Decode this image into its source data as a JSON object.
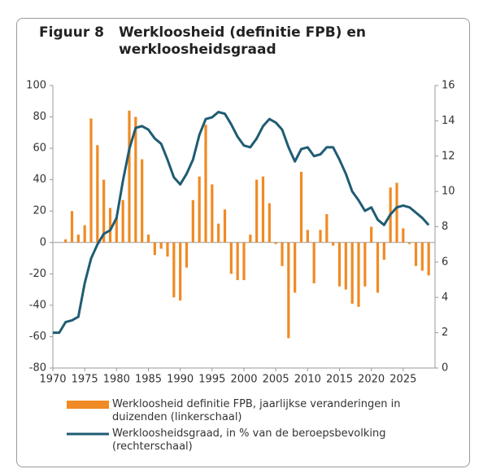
{
  "chart_data": {
    "type": "bar-line",
    "label": "Figuur 8",
    "title": "Werkloosheid (definitie FPB) en werkloosheidsgraad",
    "x": [
      1970,
      1971,
      1972,
      1973,
      1974,
      1975,
      1976,
      1977,
      1978,
      1979,
      1980,
      1981,
      1982,
      1983,
      1984,
      1985,
      1986,
      1987,
      1988,
      1989,
      1990,
      1991,
      1992,
      1993,
      1994,
      1995,
      1996,
      1997,
      1998,
      1999,
      2000,
      2001,
      2002,
      2003,
      2004,
      2005,
      2006,
      2007,
      2008,
      2009,
      2010,
      2011,
      2012,
      2013,
      2014,
      2015,
      2016,
      2017,
      2018,
      2019,
      2020,
      2021,
      2022,
      2023,
      2024,
      2025,
      2026,
      2027,
      2028,
      2029
    ],
    "xlim": [
      1970,
      2030
    ],
    "xticks": [
      1970,
      1975,
      1980,
      1985,
      1990,
      1995,
      2000,
      2005,
      2010,
      2015,
      2020,
      2025
    ],
    "ylim": [
      -80,
      100
    ],
    "yticks": [
      -80,
      -60,
      -40,
      -20,
      0,
      20,
      40,
      60,
      80,
      100
    ],
    "y2lim": [
      0,
      16
    ],
    "y2ticks": [
      0,
      2,
      4,
      6,
      8,
      10,
      12,
      14,
      16
    ],
    "series": [
      {
        "name": "Werkloosheid definitie FPB, jaarlijkse veranderingen in duizenden (linkerschaal)",
        "type": "bar",
        "color": "#f08a24",
        "values": [
          null,
          null,
          2,
          20,
          5,
          11,
          79,
          62,
          40,
          22,
          16,
          27,
          84,
          80,
          53,
          5,
          -8,
          -4,
          -9,
          -35,
          -37,
          -16,
          27,
          42,
          75,
          37,
          12,
          21,
          -20,
          -24,
          -24,
          5,
          40,
          42,
          25,
          -1,
          -15,
          -61,
          -32,
          45,
          8,
          -26,
          8,
          18,
          -2,
          -28,
          -30,
          -39,
          -41,
          -28,
          10,
          -32,
          -11,
          35,
          38,
          9,
          -1,
          -15,
          -18,
          -21
        ]
      },
      {
        "name": "Werkloosheidsgraad, in % van de beroepsbevolking (rechterschaal)",
        "type": "line",
        "axis": "y2",
        "color": "#1f5c73",
        "values": [
          2.0,
          2.0,
          2.6,
          2.7,
          2.9,
          4.8,
          6.2,
          7.0,
          7.6,
          7.8,
          8.5,
          10.6,
          12.4,
          13.6,
          13.7,
          13.5,
          13.0,
          12.7,
          11.8,
          10.8,
          10.4,
          11.0,
          11.8,
          13.2,
          14.1,
          14.2,
          14.5,
          14.4,
          13.8,
          13.1,
          12.6,
          12.5,
          13.0,
          13.7,
          14.1,
          13.9,
          13.5,
          12.5,
          11.7,
          12.4,
          12.5,
          12.0,
          12.1,
          12.5,
          12.5,
          11.8,
          11.0,
          10.0,
          9.5,
          8.9,
          9.1,
          8.4,
          8.1,
          8.7,
          9.1,
          9.2,
          9.1,
          8.8,
          8.5,
          8.1
        ]
      }
    ]
  }
}
